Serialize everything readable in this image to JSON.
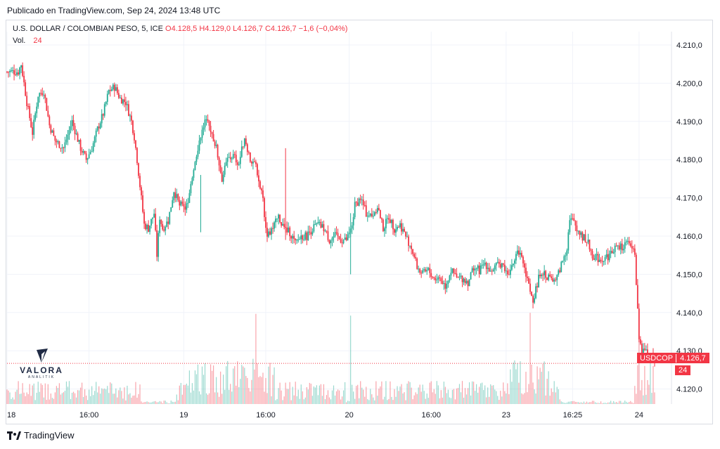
{
  "header": {
    "published": "Publicado en TradingView.com, Sep 24, 2024 13:48 UTC"
  },
  "legend": {
    "title": "U.S. DOLLAR / COLOMBIAN PESO, 5, ICE",
    "o": "O4.128,5",
    "h": "H4.129,0",
    "l": "L4.126,7",
    "c": "C4.126,7",
    "change": "−1,6 (−0,04%)",
    "vol_label": "Vol.",
    "vol_value": "24"
  },
  "price_tag": {
    "symbol": "USDCOP",
    "value": "4.126,7"
  },
  "vol_tag": {
    "value": "24"
  },
  "logo": {
    "name": "VALORA",
    "sub": "ANALITIK"
  },
  "footer": {
    "brand": "TradingView"
  },
  "colors": {
    "up": "#22ab94",
    "down": "#f23645",
    "grid": "#f0f3fa"
  },
  "chart_data": {
    "type": "candlestick",
    "symbol": "USDCOP",
    "title": "U.S. DOLLAR / COLOMBIAN PESO, 5, ICE",
    "ylim": [
      4115,
      4213
    ],
    "y_ticks": [
      {
        "v": 4210,
        "label": "4.210,0"
      },
      {
        "v": 4200,
        "label": "4.200,0"
      },
      {
        "v": 4190,
        "label": "4.190,0"
      },
      {
        "v": 4180,
        "label": "4.180,0"
      },
      {
        "v": 4170,
        "label": "4.170,0"
      },
      {
        "v": 4160,
        "label": "4.160,0"
      },
      {
        "v": 4150,
        "label": "4.150,0"
      },
      {
        "v": 4140,
        "label": "4.140,0"
      },
      {
        "v": 4130,
        "label": "4.130,0"
      },
      {
        "v": 4120,
        "label": "4.120,0"
      }
    ],
    "x_ticks": [
      {
        "i": 0,
        "label": "18"
      },
      {
        "i": 58,
        "label": "16:00"
      },
      {
        "i": 125,
        "label": "19"
      },
      {
        "i": 183,
        "label": "16:00"
      },
      {
        "i": 242,
        "label": "20"
      },
      {
        "i": 300,
        "label": "16:00"
      },
      {
        "i": 353,
        "label": "23"
      },
      {
        "i": 400,
        "label": "16:25"
      },
      {
        "i": 447,
        "label": "24"
      }
    ],
    "last_price": 4126.7,
    "anchors": [
      [
        0,
        4203
      ],
      [
        8,
        4203
      ],
      [
        10,
        4205
      ],
      [
        14,
        4195
      ],
      [
        18,
        4187
      ],
      [
        22,
        4197
      ],
      [
        26,
        4198
      ],
      [
        30,
        4189
      ],
      [
        34,
        4185
      ],
      [
        40,
        4183
      ],
      [
        46,
        4190
      ],
      [
        52,
        4183
      ],
      [
        56,
        4180
      ],
      [
        60,
        4183
      ],
      [
        64,
        4188
      ],
      [
        68,
        4192
      ],
      [
        72,
        4198
      ],
      [
        76,
        4199
      ],
      [
        80,
        4196
      ],
      [
        84,
        4195
      ],
      [
        88,
        4190
      ],
      [
        90,
        4186
      ],
      [
        92,
        4180
      ],
      [
        97,
        4163
      ],
      [
        100,
        4162
      ],
      [
        104,
        4166
      ],
      [
        106,
        4155
      ],
      [
        108,
        4165
      ],
      [
        110,
        4162
      ],
      [
        114,
        4164
      ],
      [
        118,
        4172
      ],
      [
        122,
        4168
      ],
      [
        128,
        4168
      ],
      [
        132,
        4178
      ],
      [
        136,
        4185
      ],
      [
        140,
        4190
      ],
      [
        144,
        4188
      ],
      [
        148,
        4183
      ],
      [
        152,
        4175
      ],
      [
        156,
        4180
      ],
      [
        160,
        4181
      ],
      [
        164,
        4179
      ],
      [
        168,
        4186
      ],
      [
        172,
        4180
      ],
      [
        176,
        4178
      ],
      [
        180,
        4172
      ],
      [
        184,
        4160
      ],
      [
        188,
        4162
      ],
      [
        192,
        4165
      ],
      [
        196,
        4162
      ],
      [
        200,
        4161
      ],
      [
        204,
        4158
      ],
      [
        208,
        4160
      ],
      [
        212,
        4160
      ],
      [
        216,
        4162
      ],
      [
        220,
        4163
      ],
      [
        224,
        4162
      ],
      [
        228,
        4159
      ],
      [
        232,
        4160
      ],
      [
        236,
        4159
      ],
      [
        240,
        4159
      ],
      [
        244,
        4163
      ],
      [
        246,
        4168
      ],
      [
        250,
        4170
      ],
      [
        254,
        4166
      ],
      [
        258,
        4165
      ],
      [
        262,
        4168
      ],
      [
        266,
        4162
      ],
      [
        270,
        4165
      ],
      [
        274,
        4162
      ],
      [
        278,
        4163
      ],
      [
        282,
        4160
      ],
      [
        286,
        4157
      ],
      [
        290,
        4152
      ],
      [
        294,
        4150
      ],
      [
        298,
        4151
      ],
      [
        302,
        4149
      ],
      [
        306,
        4149
      ],
      [
        310,
        4147
      ],
      [
        314,
        4151
      ],
      [
        318,
        4149
      ],
      [
        322,
        4149
      ],
      [
        326,
        4148
      ],
      [
        330,
        4152
      ],
      [
        334,
        4151
      ],
      [
        338,
        4153
      ],
      [
        342,
        4151
      ],
      [
        346,
        4152
      ],
      [
        350,
        4153
      ],
      [
        354,
        4150
      ],
      [
        358,
        4153
      ],
      [
        362,
        4156
      ],
      [
        366,
        4152
      ],
      [
        368,
        4149
      ],
      [
        370,
        4145
      ],
      [
        372,
        4143
      ],
      [
        374,
        4146
      ],
      [
        376,
        4149
      ],
      [
        380,
        4150
      ],
      [
        384,
        4149
      ],
      [
        388,
        4148
      ],
      [
        396,
        4157
      ],
      [
        398,
        4165
      ],
      [
        402,
        4163
      ],
      [
        406,
        4160
      ],
      [
        410,
        4159
      ],
      [
        414,
        4155
      ],
      [
        418,
        4154
      ],
      [
        422,
        4154
      ],
      [
        426,
        4155
      ],
      [
        430,
        4157
      ],
      [
        434,
        4157
      ],
      [
        438,
        4158
      ],
      [
        442,
        4157
      ],
      [
        444,
        4156
      ],
      [
        447,
        4132
      ],
      [
        449,
        4130
      ],
      [
        451,
        4131
      ],
      [
        453,
        4128
      ],
      [
        455,
        4129
      ],
      [
        457,
        4128
      ],
      [
        458,
        4127
      ]
    ],
    "volume_ylim": [
      0,
      300
    ],
    "volume_note": "Volume histogram overlay, colored by candle direction"
  }
}
